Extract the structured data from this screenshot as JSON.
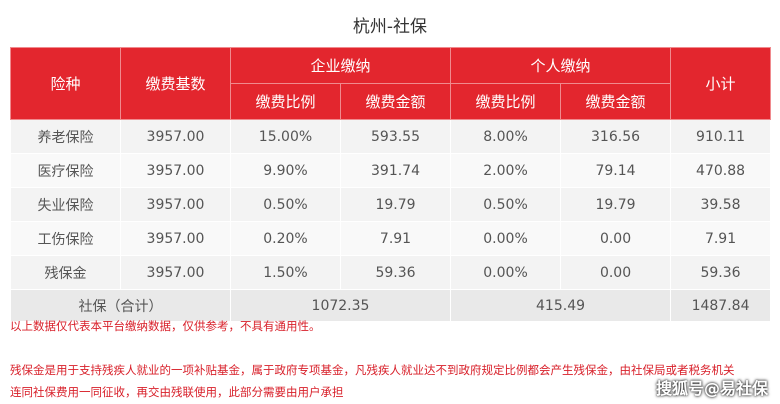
{
  "title": "杭州-社保",
  "table": {
    "header": {
      "type": "险种",
      "base": "缴费基数",
      "company": "企业缴纳",
      "personal": "个人缴纳",
      "subtotal": "小计",
      "company_cols": [
        "缴费比例",
        "缴费金额"
      ],
      "personal_cols": [
        "缴费比例",
        "缴费金额"
      ]
    },
    "rows": [
      [
        "养老保险",
        "3957.00",
        "15.00%",
        "593.55",
        "8.00%",
        "316.56",
        "910.11"
      ],
      [
        "医疗保险",
        "3957.00",
        "9.90%",
        "391.74",
        "2.00%",
        "79.14",
        "470.88"
      ],
      [
        "失业保险",
        "3957.00",
        "0.50%",
        "19.79",
        "0.50%",
        "19.79",
        "39.58"
      ],
      [
        "工伤保险",
        "3957.00",
        "0.20%",
        "7.91",
        "0.00%",
        "0.00",
        "7.91"
      ],
      [
        "残保金",
        "3957.00",
        "1.50%",
        "59.36",
        "0.00%",
        "0.00",
        "59.36"
      ]
    ],
    "total": {
      "label": "社保（合计）",
      "company": "1072.35",
      "personal": "415.49",
      "subtotal": "1487.84"
    }
  },
  "notes": {
    "disclaimer": "以上数据仅代表本平台缴纳数据，仅供参考，不具有通用性。",
    "description": [
      "残保金是用于支持残疾人就业的一项补贴基金，属于政府专项基金，凡残疾人就业达不到政府规定比例都会产生残保金，由社保局或者税务机关",
      "连同社保费用一同征收，再交由残联使用，此部分需要由用户承担"
    ]
  },
  "watermark": "搜狐号@易社保"
}
